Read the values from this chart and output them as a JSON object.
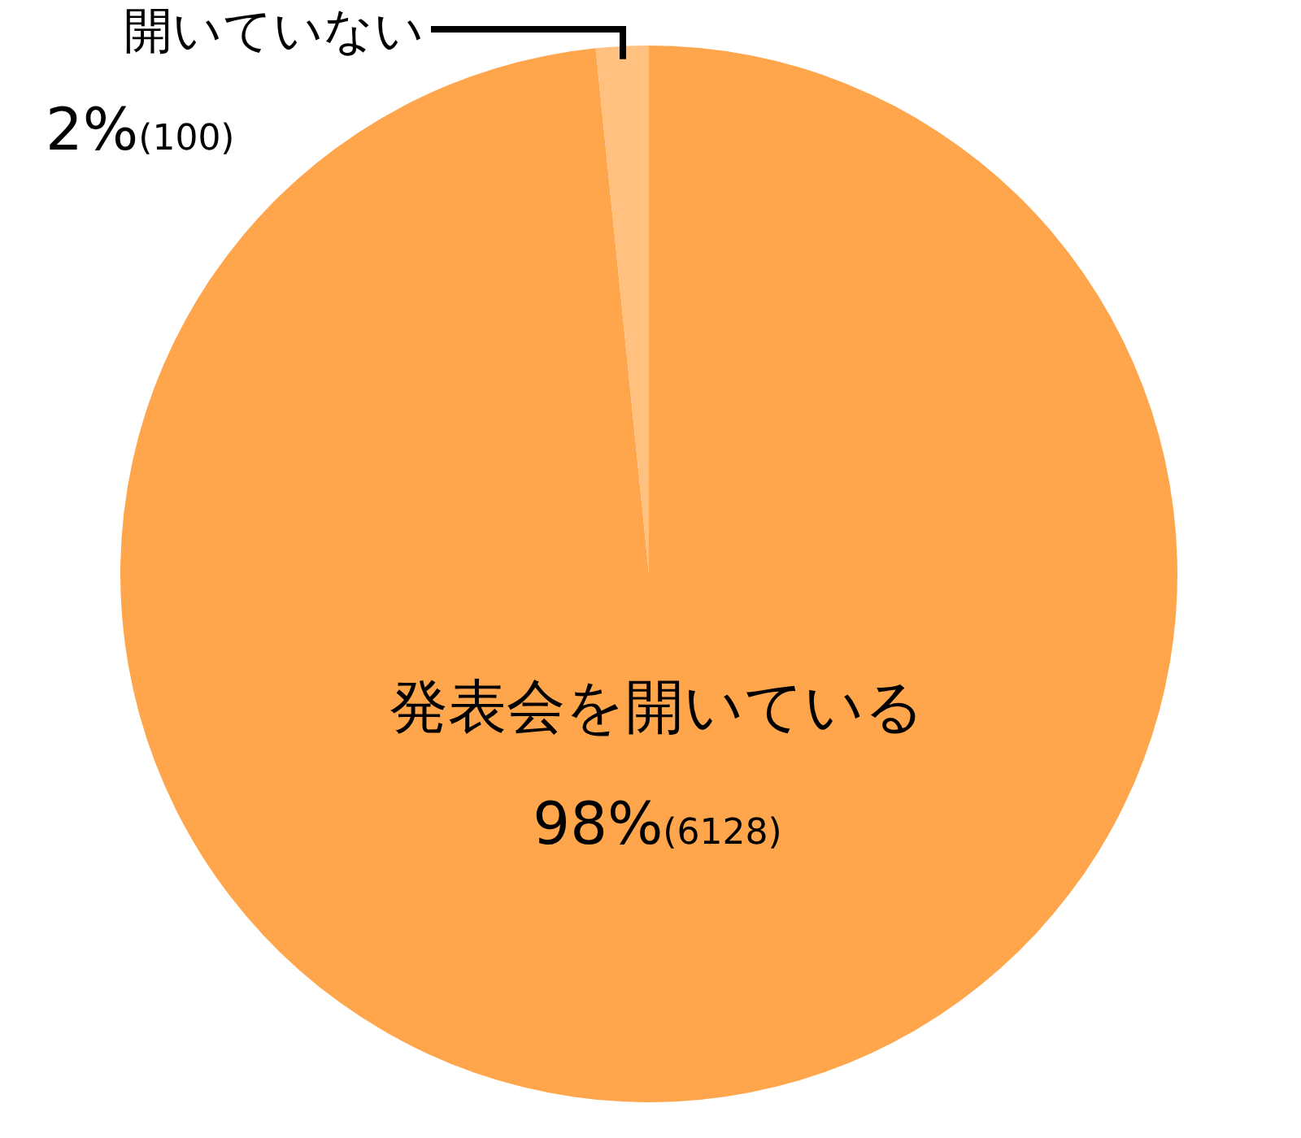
{
  "chart_data": {
    "type": "pie",
    "categories": [
      "発表会を開いている",
      "開いていない"
    ],
    "values": [
      6128,
      100
    ],
    "colors": [
      "#ffa64d",
      "#ffc080"
    ],
    "value_labels": [
      "98%(6128)",
      "2%(100)"
    ],
    "legend": false
  }
}
